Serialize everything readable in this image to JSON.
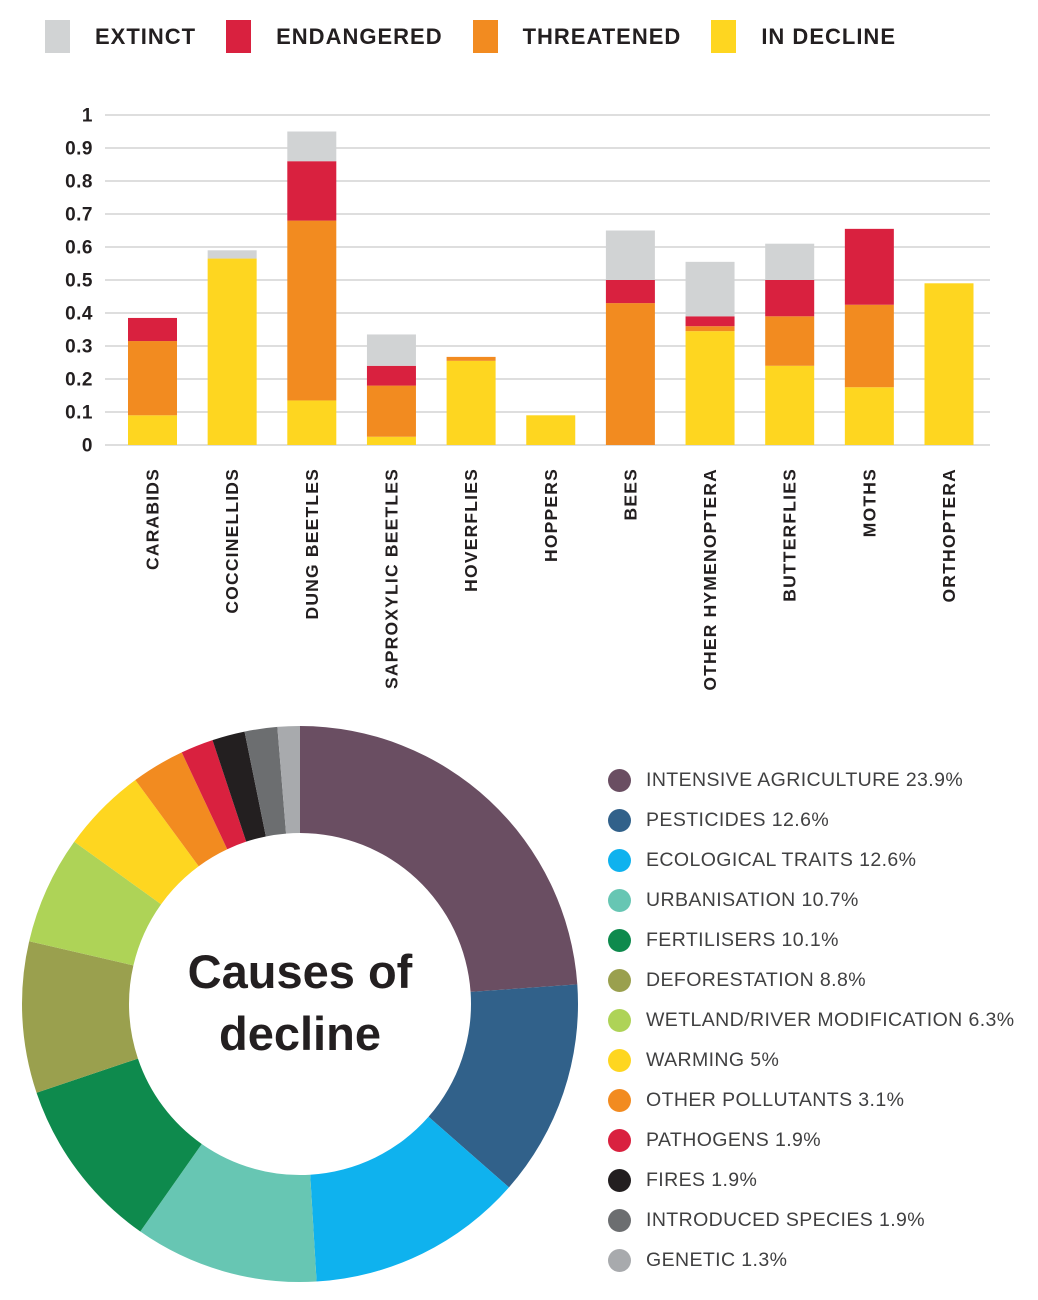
{
  "bar_legend": {
    "items": [
      {
        "label": "EXTINCT",
        "color": "#d1d3d4"
      },
      {
        "label": "ENDANGERED",
        "color": "#d9213f"
      },
      {
        "label": "THREATENED",
        "color": "#f28b20"
      },
      {
        "label": "IN DECLINE",
        "color": "#fed620"
      }
    ]
  },
  "chart_data": [
    {
      "type": "bar",
      "stacked": true,
      "title": "",
      "grid": true,
      "ylim": [
        0,
        1
      ],
      "yticks": [
        0,
        0.1,
        0.2,
        0.3,
        0.4,
        0.5,
        0.6,
        0.7,
        0.8,
        0.9,
        1
      ],
      "ytick_labels": [
        "0",
        "0.1",
        "0.2",
        "0.3",
        "0.4",
        "0.5",
        "0.6",
        "0.7",
        "0.8",
        "0.9",
        "1"
      ],
      "categories": [
        "CARABIDS",
        "COCCINELLIDS",
        "DUNG BEETLES",
        "SAPROXYLIC BEETLES",
        "HOVERFLIES",
        "HOPPERS",
        "BEES",
        "OTHER HYMENOPTERA",
        "BUTTERFLIES",
        "MOTHS",
        "ORTHOPTERA"
      ],
      "series": [
        {
          "name": "IN DECLINE",
          "color": "#fed620",
          "values": [
            0.09,
            0.565,
            0.135,
            0.025,
            0.255,
            0.09,
            0,
            0.345,
            0.24,
            0.175,
            0.49
          ]
        },
        {
          "name": "THREATENED",
          "color": "#f28b20",
          "values": [
            0.225,
            0,
            0.545,
            0.155,
            0.012,
            0,
            0.43,
            0.015,
            0.15,
            0.25,
            0
          ]
        },
        {
          "name": "ENDANGERED",
          "color": "#d9213f",
          "values": [
            0.07,
            0,
            0.18,
            0.06,
            0,
            0,
            0.07,
            0.03,
            0.11,
            0.23,
            0
          ]
        },
        {
          "name": "EXTINCT",
          "color": "#d1d3d4",
          "values": [
            0,
            0.025,
            0.09,
            0.095,
            0,
            0,
            0.15,
            0.165,
            0.11,
            0,
            0
          ]
        }
      ]
    },
    {
      "type": "pie",
      "donut": true,
      "title": "Causes of decline",
      "center_label_lines": [
        "Causes of",
        "decline"
      ],
      "legend_position": "right",
      "slices": [
        {
          "label": "INTENSIVE AGRICULTURE",
          "value": 23.9,
          "display": "INTENSIVE AGRICULTURE 23.9%",
          "color": "#6a4e62"
        },
        {
          "label": "PESTICIDES",
          "value": 12.6,
          "display": "PESTICIDES 12.6%",
          "color": "#31618a"
        },
        {
          "label": "ECOLOGICAL TRAITS",
          "value": 12.6,
          "display": "ECOLOGICAL TRAITS 12.6%",
          "color": "#0fb2ee"
        },
        {
          "label": "URBANISATION",
          "value": 10.7,
          "display": "URBANISATION 10.7%",
          "color": "#67c6b3"
        },
        {
          "label": "FERTILISERS",
          "value": 10.1,
          "display": "FERTILISERS 10.1%",
          "color": "#0e8a4d"
        },
        {
          "label": "DEFORESTATION",
          "value": 8.8,
          "display": "DEFORESTATION 8.8%",
          "color": "#9aa04e"
        },
        {
          "label": "WETLAND/RIVER MODIFICATION",
          "value": 6.3,
          "display": "WETLAND/RIVER MODIFICATION 6.3%",
          "color": "#aed357"
        },
        {
          "label": "WARMING",
          "value": 5,
          "display": "WARMING 5%",
          "color": "#fed620"
        },
        {
          "label": "OTHER POLLUTANTS",
          "value": 3.1,
          "display": "OTHER POLLUTANTS 3.1%",
          "color": "#f28b20"
        },
        {
          "label": "PATHOGENS",
          "value": 1.9,
          "display": "PATHOGENS 1.9%",
          "color": "#d9213f"
        },
        {
          "label": "FIRES",
          "value": 1.9,
          "display": "FIRES 1.9%",
          "color": "#231f20"
        },
        {
          "label": "INTRODUCED SPECIES",
          "value": 1.9,
          "display": "INTRODUCED SPECIES 1.9%",
          "color": "#6c6e70"
        },
        {
          "label": "GENETIC",
          "value": 1.3,
          "display": "GENETIC 1.3%",
          "color": "#a8aaad"
        }
      ]
    }
  ]
}
